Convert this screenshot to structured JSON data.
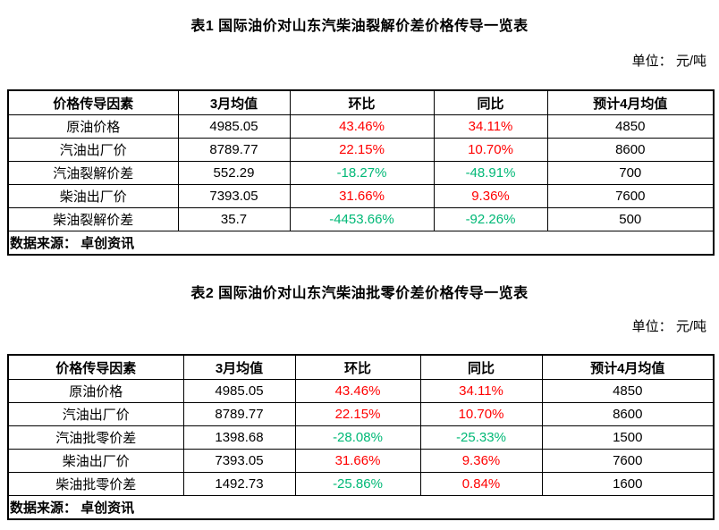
{
  "colors": {
    "up": "#ff0000",
    "down": "#00b876",
    "text": "#000000",
    "border": "#000000"
  },
  "table1": {
    "title": "表1 国际油价对山东汽柴油裂解价差价格传导一览表",
    "unit_label": "单位： 元/吨",
    "headers": [
      "价格传导因素",
      "3月均值",
      "环比",
      "同比",
      "预计4月均值"
    ],
    "rows": [
      {
        "factor": "原油价格",
        "mar_avg": "4985.05",
        "mom": "43.46%",
        "yoy": "34.11%",
        "apr_forecast": "4850"
      },
      {
        "factor": "汽油出厂价",
        "mar_avg": "8789.77",
        "mom": "22.15%",
        "yoy": "10.70%",
        "apr_forecast": "8600"
      },
      {
        "factor": "汽油裂解价差",
        "mar_avg": "552.29",
        "mom": "-18.27%",
        "yoy": "-48.91%",
        "apr_forecast": "700"
      },
      {
        "factor": "柴油出厂价",
        "mar_avg": "7393.05",
        "mom": "31.66%",
        "yoy": "9.36%",
        "apr_forecast": "7600"
      },
      {
        "factor": "柴油裂解价差",
        "mar_avg": "35.7",
        "mom": "-4453.66%",
        "yoy": "-92.26%",
        "apr_forecast": "500"
      }
    ],
    "source": "数据来源： 卓创资讯"
  },
  "table2": {
    "title": "表2 国际油价对山东汽柴油批零价差价格传导一览表",
    "unit_label": "单位： 元/吨",
    "headers": [
      "价格传导因素",
      "3月均值",
      "环比",
      "同比",
      "预计4月均值"
    ],
    "rows": [
      {
        "factor": "原油价格",
        "mar_avg": "4985.05",
        "mom": "43.46%",
        "yoy": "34.11%",
        "apr_forecast": "4850"
      },
      {
        "factor": "汽油出厂价",
        "mar_avg": "8789.77",
        "mom": "22.15%",
        "yoy": "10.70%",
        "apr_forecast": "8600"
      },
      {
        "factor": "汽油批零价差",
        "mar_avg": "1398.68",
        "mom": "-28.08%",
        "yoy": "-25.33%",
        "apr_forecast": "1500"
      },
      {
        "factor": "柴油出厂价",
        "mar_avg": "7393.05",
        "mom": "31.66%",
        "yoy": "9.36%",
        "apr_forecast": "7600"
      },
      {
        "factor": "柴油批零价差",
        "mar_avg": "1492.73",
        "mom": "-25.86%",
        "yoy": "0.84%",
        "apr_forecast": "1600"
      }
    ],
    "source": "数据来源： 卓创资讯"
  }
}
